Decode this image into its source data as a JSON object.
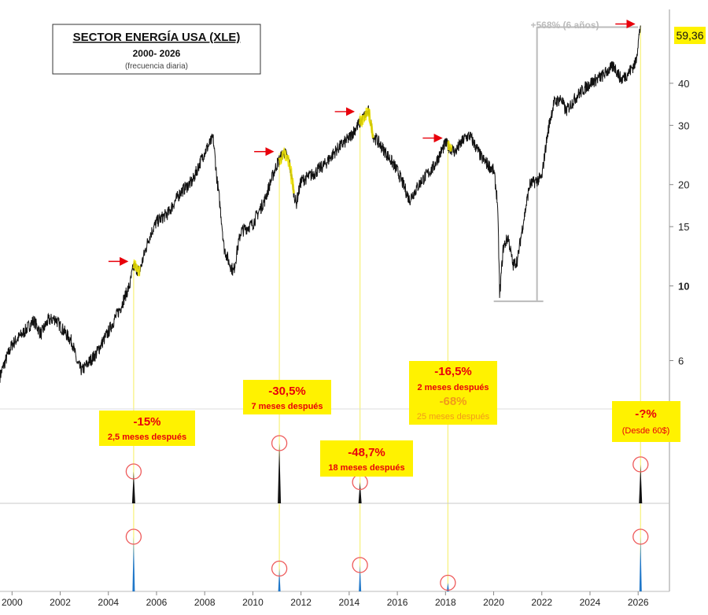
{
  "title_box": {
    "title": "SECTOR ENERGÍA USA (XLE)",
    "subtitle": "2000- 2026",
    "note": "(frecuencia diaria)"
  },
  "colors": {
    "price_line": "#111111",
    "highlight": "#f2e600",
    "guide_line": "#f7f27a",
    "label_bg": "#fff200",
    "label_red": "#e8000b",
    "label_orange": "#f29a1a",
    "arrow": "#e8000b",
    "circle": "#ee5a5a",
    "indicator_top": "#111111",
    "indicator_bottom": "#1f77c9",
    "gain_annotation": "#bbbbbb"
  },
  "chart_data": {
    "type": "line",
    "scale": "log",
    "xlim": [
      1999.5,
      2027.3
    ],
    "ylim": [
      4.8,
      67
    ],
    "xticks": [
      "2000",
      "2002",
      "2004",
      "2006",
      "2008",
      "2010",
      "2012",
      "2014",
      "2016",
      "2018",
      "2020",
      "2022",
      "2024",
      "2026"
    ],
    "yticks": [
      "6",
      "10",
      "15",
      "20",
      "30",
      "40"
    ],
    "last_price_label": "59,36",
    "grid": false,
    "series": [
      {
        "x": [
          1999.5,
          2000.0,
          2000.5,
          2000.9,
          2001.2,
          2001.5,
          2001.8,
          2002.0,
          2002.5,
          2002.7,
          2002.9,
          2003.5,
          2004.0,
          2004.5,
          2004.9,
          2005.05,
          2005.3,
          2005.7,
          2006.0,
          2006.5,
          2007.0,
          2007.5,
          2008.0,
          2008.35,
          2008.5,
          2008.8,
          2009.0,
          2009.2,
          2009.5,
          2010.0,
          2010.5,
          2011.0,
          2011.3,
          2011.5,
          2011.7,
          2011.8,
          2012.0,
          2012.5,
          2013.0,
          2013.5,
          2014.0,
          2014.5,
          2014.8,
          2015.0,
          2015.5,
          2016.0,
          2016.5,
          2017.0,
          2017.5,
          2018.0,
          2018.4,
          2018.8,
          2019.0,
          2019.5,
          2020.0,
          2020.15,
          2020.25,
          2020.4,
          2020.6,
          2020.8,
          2021.0,
          2021.3,
          2021.5,
          2022.0,
          2022.3,
          2022.5,
          2022.8,
          2023.0,
          2023.5,
          2024.0,
          2024.5,
          2024.8,
          2025.0,
          2025.3,
          2025.6,
          2025.9,
          2026.1
        ],
        "y": [
          5.4,
          6.7,
          7.3,
          7.9,
          7.2,
          7.9,
          8.0,
          7.6,
          6.8,
          5.9,
          5.6,
          6.3,
          7.3,
          8.6,
          10.1,
          11.5,
          11.0,
          14.0,
          15.5,
          16.5,
          19.0,
          20.5,
          25.0,
          27.5,
          21.0,
          13.0,
          11.8,
          11.0,
          14.5,
          15.3,
          18.0,
          23.0,
          25.0,
          23.5,
          19.0,
          17.5,
          20.5,
          21.5,
          23.0,
          25.5,
          27.5,
          31.0,
          33.0,
          28.0,
          25.0,
          22.0,
          18.0,
          20.5,
          22.5,
          26.5,
          25.0,
          27.5,
          28.0,
          24.0,
          22.0,
          18.0,
          9.2,
          13.0,
          14.0,
          11.5,
          12.0,
          16.5,
          20.0,
          21.0,
          30.0,
          35.0,
          36.0,
          33.0,
          37.0,
          40.0,
          42.0,
          44.0,
          45.0,
          41.0,
          43.0,
          46.0,
          59.36
        ]
      }
    ],
    "peaks": [
      {
        "x": 2005.05,
        "y": 11.7,
        "highlight_to_x": 2005.3
      },
      {
        "x": 2011.1,
        "y": 24.8,
        "highlight_to_x": 2011.7
      },
      {
        "x": 2014.45,
        "y": 32.6,
        "highlight_to_x": 2015.0
      },
      {
        "x": 2018.1,
        "y": 27.2,
        "highlight_to_x": 2018.25
      },
      {
        "x": 2026.1,
        "y": 59.36,
        "highlight_to_x": 2026.1
      }
    ],
    "gain_range": {
      "x_low": 2020.2,
      "x_high": 2021.8,
      "y_low": 9.0,
      "y_high": 59.36
    }
  },
  "annotations": {
    "gain_text": "+568% (6 años)",
    "labels": [
      {
        "pct": "-15%",
        "sub": "2,5 meses después"
      },
      {
        "pct": "-30,5%",
        "sub": "7 meses después"
      },
      {
        "pct": "-48,7%",
        "sub": "18 meses después"
      },
      {
        "pct": "-16,5%",
        "sub": "2 meses después",
        "pct2": "-68%",
        "sub2": "25 meses después"
      },
      {
        "pct": "-?%",
        "sub": "(Desde 60$)"
      }
    ]
  },
  "indicator": {
    "top_spikes": [
      0.45,
      0.85,
      0.3,
      0.0,
      0.0,
      0.55
    ],
    "bottom_spikes": [
      0.75,
      0.3,
      0.35,
      0.1,
      0.75
    ]
  }
}
